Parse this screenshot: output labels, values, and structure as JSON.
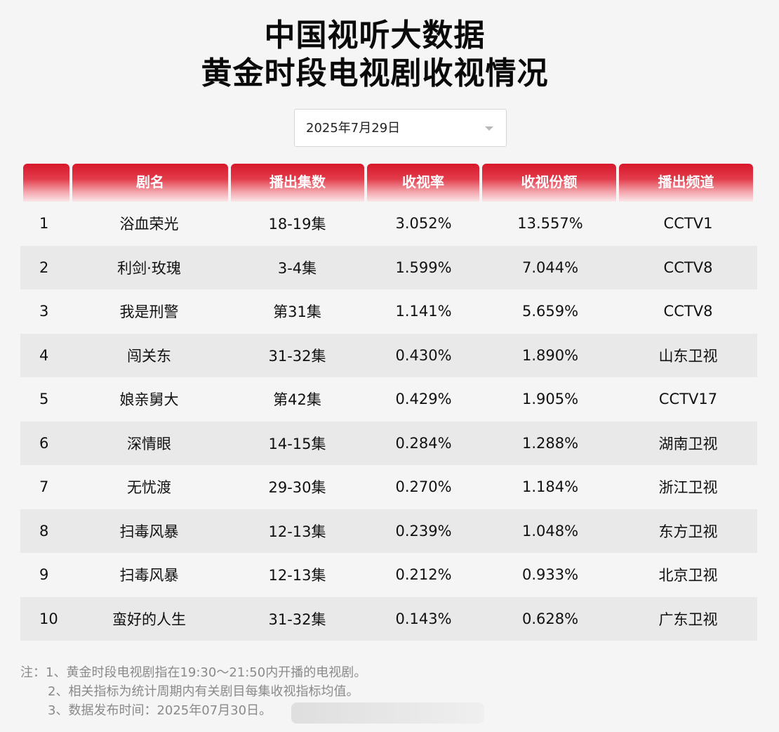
{
  "title": {
    "line1": "中国视听大数据",
    "line2": "黄金时段电视剧收视情况"
  },
  "date_select": {
    "value": "2025年7月29日"
  },
  "table": {
    "headers": [
      "",
      "剧名",
      "播出集数",
      "收视率",
      "收视份额",
      "播出频道"
    ],
    "rows": [
      {
        "rank": "1",
        "name": "浴血荣光",
        "episodes": "18-19集",
        "rating": "3.052%",
        "share": "13.557%",
        "channel": "CCTV1"
      },
      {
        "rank": "2",
        "name": "利剑·玫瑰",
        "episodes": "3-4集",
        "rating": "1.599%",
        "share": "7.044%",
        "channel": "CCTV8"
      },
      {
        "rank": "3",
        "name": "我是刑警",
        "episodes": "第31集",
        "rating": "1.141%",
        "share": "5.659%",
        "channel": "CCTV8"
      },
      {
        "rank": "4",
        "name": "闯关东",
        "episodes": "31-32集",
        "rating": "0.430%",
        "share": "1.890%",
        "channel": "山东卫视"
      },
      {
        "rank": "5",
        "name": "娘亲舅大",
        "episodes": "第42集",
        "rating": "0.429%",
        "share": "1.905%",
        "channel": "CCTV17"
      },
      {
        "rank": "6",
        "name": "深情眼",
        "episodes": "14-15集",
        "rating": "0.284%",
        "share": "1.288%",
        "channel": "湖南卫视"
      },
      {
        "rank": "7",
        "name": "无忧渡",
        "episodes": "29-30集",
        "rating": "0.270%",
        "share": "1.184%",
        "channel": "浙江卫视"
      },
      {
        "rank": "8",
        "name": "扫毒风暴",
        "episodes": "12-13集",
        "rating": "0.239%",
        "share": "1.048%",
        "channel": "东方卫视"
      },
      {
        "rank": "9",
        "name": "扫毒风暴",
        "episodes": "12-13集",
        "rating": "0.212%",
        "share": "0.933%",
        "channel": "北京卫视"
      },
      {
        "rank": "10",
        "name": "蛮好的人生",
        "episodes": "31-32集",
        "rating": "0.143%",
        "share": "0.628%",
        "channel": "广东卫视"
      }
    ]
  },
  "notes": [
    "注：1、黄金时段电视剧指在19:30～21:50内开播的电视剧。",
    "2、相关指标为统计周期内有关剧目每集收视指标均值。",
    "3、数据发布时间：2025年07月30日。"
  ],
  "colors": {
    "header_red": "#d7182a",
    "alt_row": "#e9e9e9",
    "background": "#f5f5f5"
  }
}
